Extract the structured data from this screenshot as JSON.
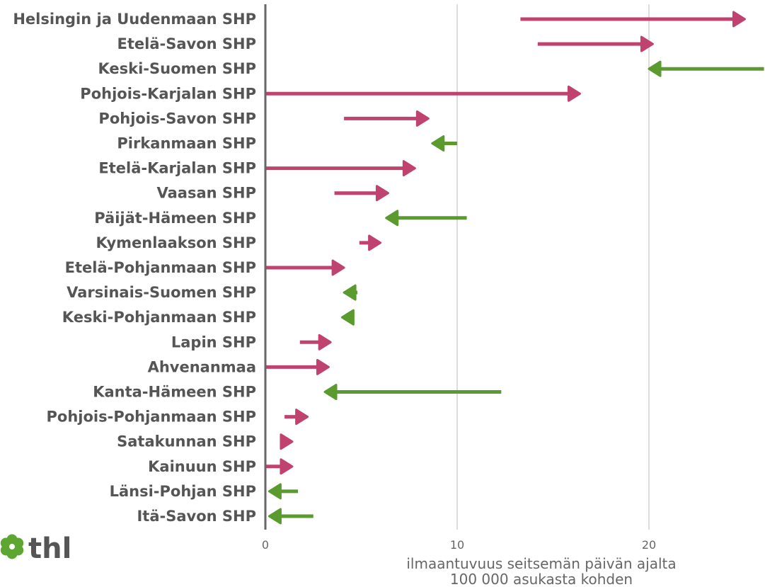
{
  "logo": {
    "text": "thl",
    "color": "#5da631"
  },
  "chart_data": {
    "type": "arrow",
    "xlabel_line1": "ilmaantuvuus seitsemän päivän ajalta",
    "xlabel_line2": "100 000 asukasta kohden",
    "xlim": [
      0,
      26
    ],
    "xticks": [
      0,
      10,
      20
    ],
    "grid_x": true,
    "colors": {
      "increase": "#c0436f",
      "decrease": "#5a9a2e"
    },
    "categories": [
      "Helsingin ja Uudenmaan SHP",
      "Etelä-Savon SHP",
      "Keski-Suomen SHP",
      "Pohjois-Karjalan SHP",
      "Pohjois-Savon SHP",
      "Pirkanmaan SHP",
      "Etelä-Karjalan SHP",
      "Vaasan SHP",
      "Päijät-Hämeen SHP",
      "Kymenlaakson SHP",
      "Etelä-Pohjanmaan SHP",
      "Varsinais-Suomen SHP",
      "Keski-Pohjanmaan SHP",
      "Lapin SHP",
      "Ahvenanmaa",
      "Kanta-Hämeen SHP",
      "Pohjois-Pohjanmaan SHP",
      "Satakunnan SHP",
      "Kainuun SHP",
      "Länsi-Pohjan SHP",
      "Itä-Savon SHP"
    ],
    "start": [
      13.3,
      14.2,
      26.0,
      0.0,
      4.1,
      10.0,
      0.0,
      3.6,
      10.5,
      4.9,
      0.0,
      4.8,
      4.4,
      1.8,
      0.0,
      12.3,
      1.0,
      0.9,
      0.0,
      1.7,
      2.5
    ],
    "end": [
      25.0,
      20.2,
      20.0,
      16.4,
      8.5,
      8.7,
      7.8,
      6.4,
      6.3,
      6.0,
      4.1,
      4.1,
      4.0,
      3.4,
      3.3,
      3.1,
      2.2,
      1.4,
      1.4,
      0.2,
      0.2
    ]
  }
}
